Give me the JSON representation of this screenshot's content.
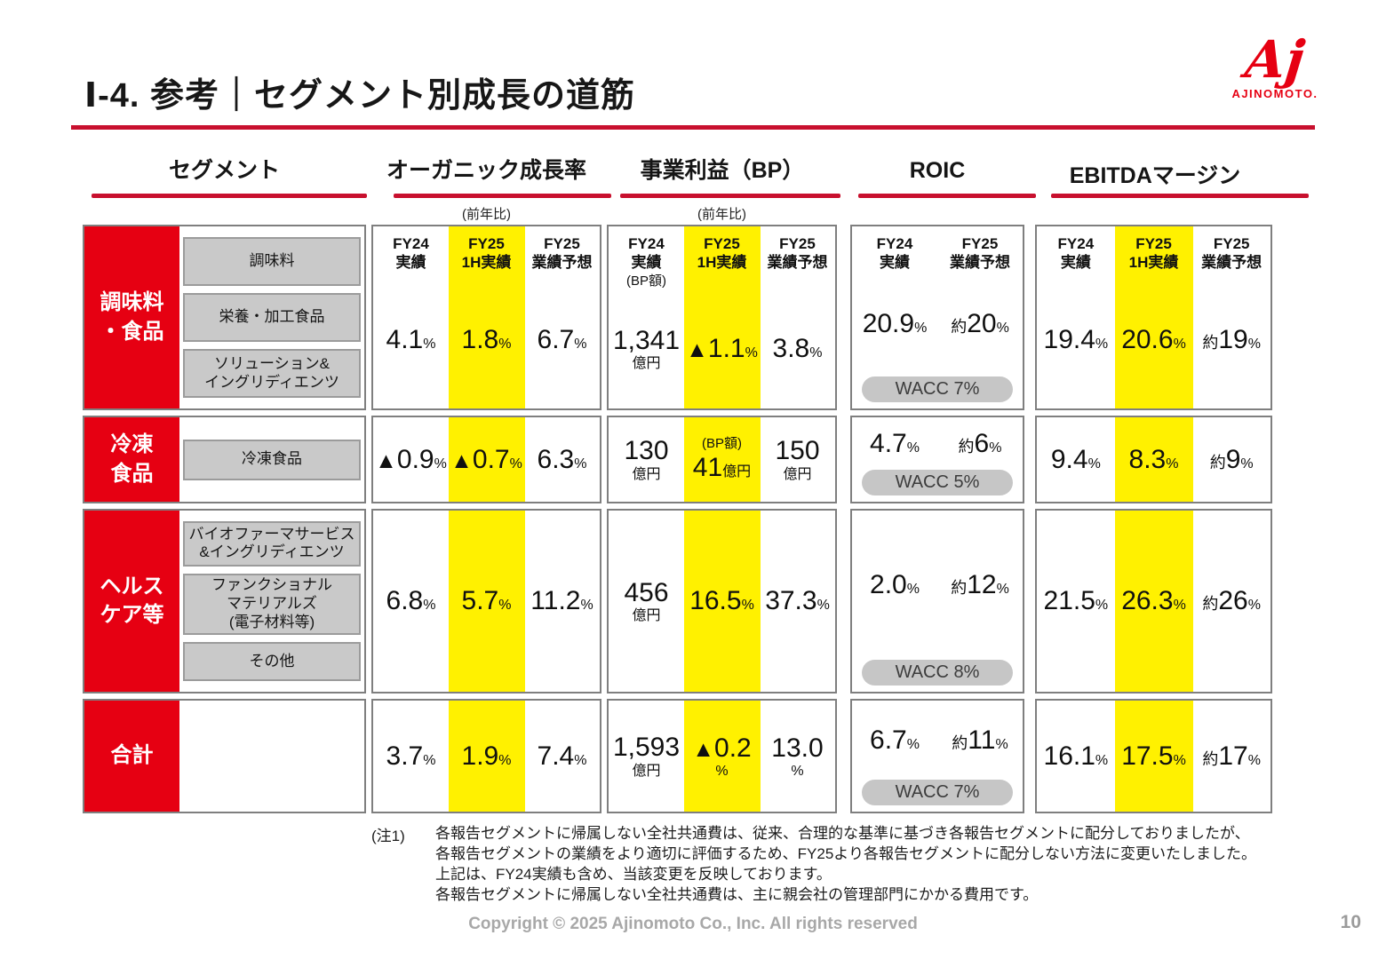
{
  "slide": {
    "title": "Ⅰ-4. 参考｜セグメント別成長の道筋",
    "page_number": "10",
    "copyright": "Copyright © 2025 Ajinomoto Co., Inc. All rights reserved"
  },
  "logo": {
    "mark": "Aj",
    "wordmark": "AJINOMOTO."
  },
  "colors": {
    "accent_red": "#E60012",
    "rule_red": "#C8102E",
    "highlight_yellow": "#FFF100",
    "box_gray": "#C9C9C9",
    "pill_gray": "#C6C6C6"
  },
  "columns": {
    "segment": {
      "title": "セグメント"
    },
    "organic": {
      "title": "オーガニック成長率",
      "subtitle": "(前年比)"
    },
    "bp": {
      "title": "事業利益（BP）",
      "subtitle": "(前年比)"
    },
    "roic": {
      "title": "ROIC"
    },
    "ebitda": {
      "title": "EBITDAマージン"
    }
  },
  "headers": {
    "organic": {
      "h1": "FY24\n実績",
      "h2": "FY25\n1H実績",
      "h3": "FY25\n業績予想"
    },
    "bp": {
      "h1": "FY24\n実績",
      "h1_note": "(BP額)",
      "h2": "FY25\n1H実績",
      "h3": "FY25\n業績予想"
    },
    "roic": {
      "h1": "FY24\n実績",
      "h2": "FY25\n業績予想"
    },
    "ebitda": {
      "h1": "FY24\n実績",
      "h2": "FY25\n1H実績",
      "h3": "FY25\n業績予想"
    }
  },
  "rows": {
    "r1": {
      "label": "調味料\n・食品",
      "sub1": "調味料",
      "sub2": "栄養・加工食品",
      "sub3": "ソリューション&\nイングリディエンツ",
      "organic": {
        "v1": "4.1",
        "v1u": "%",
        "v2": "1.8",
        "v2u": "%",
        "v3": "6.7",
        "v3u": "%"
      },
      "bp": {
        "v1": "1,341",
        "v1u": "億円",
        "v2p": "▲",
        "v2": "1.1",
        "v2u": "%",
        "v3": "3.8",
        "v3u": "%"
      },
      "roic": {
        "v1": "20.9",
        "v1u": "%",
        "v2p": "約",
        "v2": "20",
        "v2u": "%",
        "wacc": "WACC 7%"
      },
      "ebitda": {
        "v1": "19.4",
        "v1u": "%",
        "v2": "20.6",
        "v2u": "%",
        "v3p": "約",
        "v3": "19",
        "v3u": "%"
      }
    },
    "r2": {
      "label": "冷凍\n食品",
      "sub1": "冷凍食品",
      "organic": {
        "v1p": "▲",
        "v1": "0.9",
        "v1u": "%",
        "v2p": "▲",
        "v2": "0.7",
        "v2u": "%",
        "v3": "6.3",
        "v3u": "%"
      },
      "bp": {
        "v1": "130",
        "v1u": "億円",
        "v2note": "(BP額)",
        "v2": "41",
        "v2u": "億円",
        "v3": "150",
        "v3u": "億円"
      },
      "roic": {
        "v1": "4.7",
        "v1u": "%",
        "v2p": "約",
        "v2": "6",
        "v2u": "%",
        "wacc": "WACC 5%"
      },
      "ebitda": {
        "v1": "9.4",
        "v1u": "%",
        "v2": "8.3",
        "v2u": "%",
        "v3p": "約",
        "v3": "9",
        "v3u": "%"
      }
    },
    "r3": {
      "label": "ヘルス\nケア等",
      "sub1": "バイオファーマサービス\n&イングリディエンツ",
      "sub2": "ファンクショナル\nマテリアルズ\n(電子材料等)",
      "sub3": "その他",
      "organic": {
        "v1": "6.8",
        "v1u": "%",
        "v2": "5.7",
        "v2u": "%",
        "v3": "11.2",
        "v3u": "%"
      },
      "bp": {
        "v1": "456",
        "v1u": "億円",
        "v2": "16.5",
        "v2u": "%",
        "v3": "37.3",
        "v3u": "%"
      },
      "roic": {
        "v1": "2.0",
        "v1u": "%",
        "v2p": "約",
        "v2": "12",
        "v2u": "%",
        "wacc": "WACC 8%"
      },
      "ebitda": {
        "v1": "21.5",
        "v1u": "%",
        "v2": "26.3",
        "v2u": "%",
        "v3p": "約",
        "v3": "26",
        "v3u": "%"
      }
    },
    "r4": {
      "label": "合計",
      "organic": {
        "v1": "3.7",
        "v1u": "%",
        "v2": "1.9",
        "v2u": "%",
        "v3": "7.4",
        "v3u": "%"
      },
      "bp": {
        "v1": "1,593",
        "v1u": "億円",
        "v2p": "▲",
        "v2": "0.2",
        "v2u": "%",
        "v3": "13.0",
        "v3u": "%"
      },
      "roic": {
        "v1": "6.7",
        "v1u": "%",
        "v2p": "約",
        "v2": "11",
        "v2u": "%",
        "wacc": "WACC 7%"
      },
      "ebitda": {
        "v1": "16.1",
        "v1u": "%",
        "v2": "17.5",
        "v2u": "%",
        "v3p": "約",
        "v3": "17",
        "v3u": "%"
      }
    }
  },
  "notes": {
    "label": "(注1)",
    "line1": "各報告セグメントに帰属しない全社共通費は、従来、合理的な基準に基づき各報告セグメントに配分しておりましたが、",
    "line2": "各報告セグメントの業績をより適切に評価するため、FY25より各報告セグメントに配分しない方法に変更いたしました。",
    "line3": "上記は、FY24実績も含め、当該変更を反映しております。",
    "line4": "各報告セグメントに帰属しない全社共通費は、主に親会社の管理部門にかかる費用です。"
  }
}
